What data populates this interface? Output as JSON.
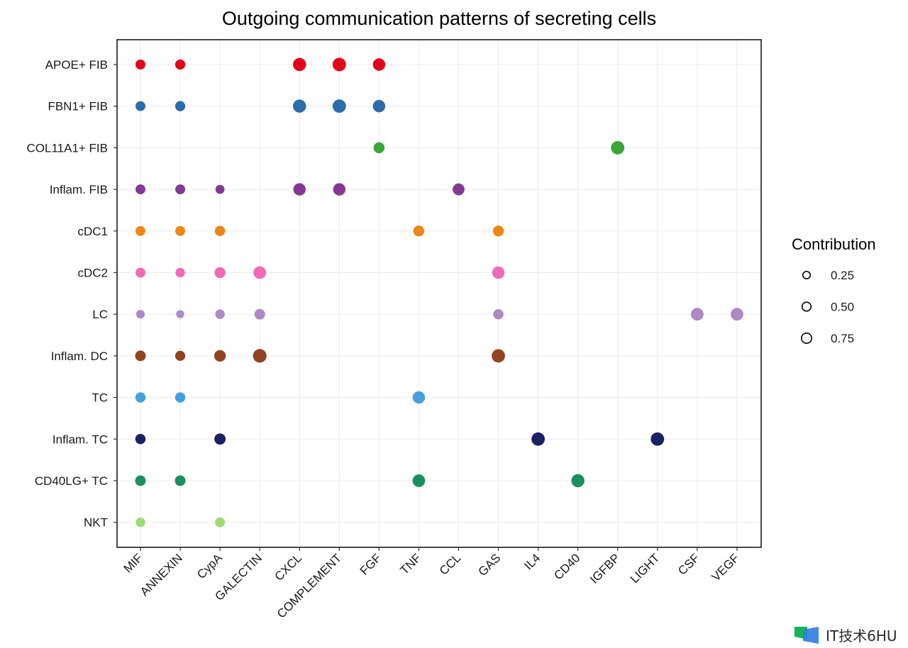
{
  "chart_data": {
    "type": "scatter",
    "subtype": "dot-matrix",
    "title": "Outgoing communication patterns of secreting cells",
    "xlabel": "",
    "ylabel": "",
    "grid": true,
    "x_categories": [
      "MIF",
      "ANNEXIN",
      "CypA",
      "GALECTIN",
      "CXCL",
      "COMPLEMENT",
      "FGF",
      "TNF",
      "CCL",
      "GAS",
      "IL4",
      "CD40",
      "IGFBP",
      "LIGHT",
      "CSF",
      "VEGF"
    ],
    "y_categories": [
      "APOE+ FIB",
      "FBN1+ FIB",
      "COL11A1+ FIB",
      "Inflam. FIB",
      "cDC1",
      "cDC2",
      "LC",
      "Inflam. DC",
      "TC",
      "Inflam. TC",
      "CD40LG+ TC",
      "NKT"
    ],
    "row_colors": {
      "APOE+ FIB": "#E3001B",
      "FBN1+ FIB": "#2D6BAA",
      "COL11A1+ FIB": "#3DA53A",
      "Inflam. FIB": "#833994",
      "cDC1": "#EC8716",
      "cDC2": "#F06BB5",
      "LC": "#AD8AC4",
      "Inflam. DC": "#924422",
      "TC": "#46A0DE",
      "Inflam. TC": "#1B2165",
      "CD40LG+ TC": "#1C8E62",
      "NKT": "#9FDA73"
    },
    "size_legend": {
      "title": "Contribution",
      "values": [
        0.25,
        0.5,
        0.75
      ],
      "labels": [
        "0.25",
        "0.50",
        "0.75"
      ],
      "placement": "right"
    },
    "points": [
      {
        "y": "APOE+ FIB",
        "x": "MIF",
        "contribution": 0.35
      },
      {
        "y": "APOE+ FIB",
        "x": "ANNEXIN",
        "contribution": 0.38
      },
      {
        "y": "APOE+ FIB",
        "x": "CXCL",
        "contribution": 0.9
      },
      {
        "y": "APOE+ FIB",
        "x": "COMPLEMENT",
        "contribution": 0.95
      },
      {
        "y": "APOE+ FIB",
        "x": "FGF",
        "contribution": 0.75
      },
      {
        "y": "FBN1+ FIB",
        "x": "MIF",
        "contribution": 0.35
      },
      {
        "y": "FBN1+ FIB",
        "x": "ANNEXIN",
        "contribution": 0.38
      },
      {
        "y": "FBN1+ FIB",
        "x": "CXCL",
        "contribution": 0.9
      },
      {
        "y": "FBN1+ FIB",
        "x": "COMPLEMENT",
        "contribution": 0.95
      },
      {
        "y": "FBN1+ FIB",
        "x": "FGF",
        "contribution": 0.75
      },
      {
        "y": "COL11A1+ FIB",
        "x": "FGF",
        "contribution": 0.5
      },
      {
        "y": "COL11A1+ FIB",
        "x": "IGFBP",
        "contribution": 0.95
      },
      {
        "y": "Inflam. FIB",
        "x": "MIF",
        "contribution": 0.35
      },
      {
        "y": "Inflam. FIB",
        "x": "ANNEXIN",
        "contribution": 0.35
      },
      {
        "y": "Inflam. FIB",
        "x": "CypA",
        "contribution": 0.25
      },
      {
        "y": "Inflam. FIB",
        "x": "CXCL",
        "contribution": 0.75
      },
      {
        "y": "Inflam. FIB",
        "x": "COMPLEMENT",
        "contribution": 0.75
      },
      {
        "y": "Inflam. FIB",
        "x": "CCL",
        "contribution": 0.65
      },
      {
        "y": "cDC1",
        "x": "MIF",
        "contribution": 0.35
      },
      {
        "y": "cDC1",
        "x": "ANNEXIN",
        "contribution": 0.35
      },
      {
        "y": "cDC1",
        "x": "CypA",
        "contribution": 0.4
      },
      {
        "y": "cDC1",
        "x": "TNF",
        "contribution": 0.5
      },
      {
        "y": "cDC1",
        "x": "GAS",
        "contribution": 0.5
      },
      {
        "y": "cDC2",
        "x": "MIF",
        "contribution": 0.35
      },
      {
        "y": "cDC2",
        "x": "ANNEXIN",
        "contribution": 0.3
      },
      {
        "y": "cDC2",
        "x": "CypA",
        "contribution": 0.5
      },
      {
        "y": "cDC2",
        "x": "GALECTIN",
        "contribution": 0.8
      },
      {
        "y": "cDC2",
        "x": "GAS",
        "contribution": 0.75
      },
      {
        "y": "LC",
        "x": "MIF",
        "contribution": 0.2
      },
      {
        "y": "LC",
        "x": "ANNEXIN",
        "contribution": 0.15
      },
      {
        "y": "LC",
        "x": "CypA",
        "contribution": 0.3
      },
      {
        "y": "LC",
        "x": "GALECTIN",
        "contribution": 0.45
      },
      {
        "y": "LC",
        "x": "GAS",
        "contribution": 0.4
      },
      {
        "y": "LC",
        "x": "CSF",
        "contribution": 0.8
      },
      {
        "y": "LC",
        "x": "VEGF",
        "contribution": 0.8
      },
      {
        "y": "Inflam. DC",
        "x": "MIF",
        "contribution": 0.45
      },
      {
        "y": "Inflam. DC",
        "x": "ANNEXIN",
        "contribution": 0.38
      },
      {
        "y": "Inflam. DC",
        "x": "CypA",
        "contribution": 0.6
      },
      {
        "y": "Inflam. DC",
        "x": "GALECTIN",
        "contribution": 1.0
      },
      {
        "y": "Inflam. DC",
        "x": "GAS",
        "contribution": 0.95
      },
      {
        "y": "TC",
        "x": "MIF",
        "contribution": 0.4
      },
      {
        "y": "TC",
        "x": "ANNEXIN",
        "contribution": 0.4
      },
      {
        "y": "TC",
        "x": "TNF",
        "contribution": 0.75
      },
      {
        "y": "Inflam. TC",
        "x": "MIF",
        "contribution": 0.4
      },
      {
        "y": "Inflam. TC",
        "x": "CypA",
        "contribution": 0.55
      },
      {
        "y": "Inflam. TC",
        "x": "IL4",
        "contribution": 0.95
      },
      {
        "y": "Inflam. TC",
        "x": "LIGHT",
        "contribution": 0.95
      },
      {
        "y": "CD40LG+ TC",
        "x": "MIF",
        "contribution": 0.45
      },
      {
        "y": "CD40LG+ TC",
        "x": "ANNEXIN",
        "contribution": 0.45
      },
      {
        "y": "CD40LG+ TC",
        "x": "TNF",
        "contribution": 0.8
      },
      {
        "y": "CD40LG+ TC",
        "x": "CD40",
        "contribution": 0.9
      },
      {
        "y": "NKT",
        "x": "MIF",
        "contribution": 0.3
      },
      {
        "y": "NKT",
        "x": "CypA",
        "contribution": 0.35
      }
    ]
  },
  "watermark": {
    "text": "IT技术6HU",
    "icon": "logo-icon",
    "colors": [
      "#16B35A",
      "#2E7DE0"
    ]
  }
}
